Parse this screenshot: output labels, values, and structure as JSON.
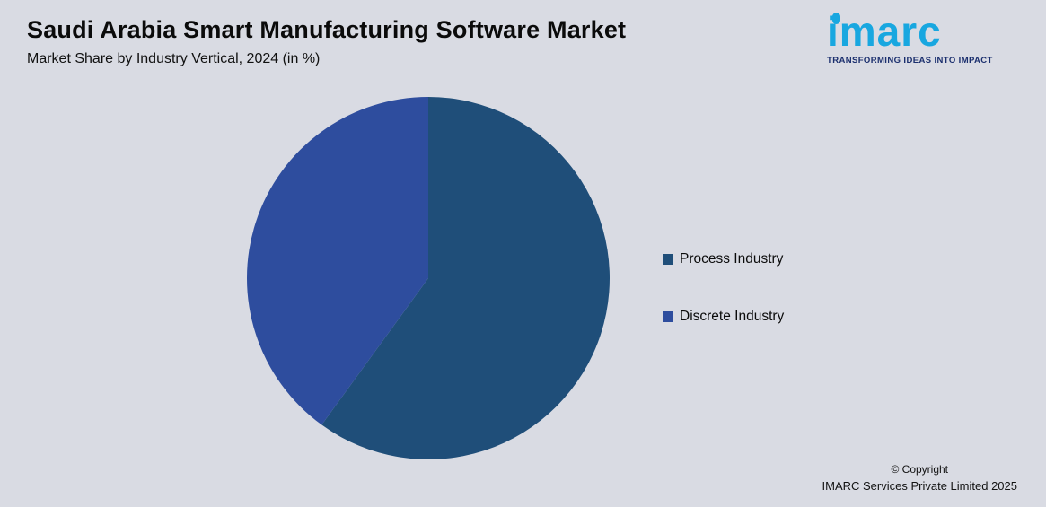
{
  "header": {
    "title": "Saudi Arabia Smart Manufacturing Software Market",
    "subtitle": "Market Share by Industry Vertical, 2024 (in %)"
  },
  "logo": {
    "text": "imarc",
    "tagline": "TRANSFORMING IDEAS INTO IMPACT",
    "brand_color": "#18a7e0",
    "tagline_color": "#1b2f6e"
  },
  "chart_data": {
    "type": "pie",
    "title": "Saudi Arabia Smart Manufacturing Software Market",
    "subtitle": "Market Share by Industry Vertical, 2024 (in %)",
    "unit": "%",
    "start_angle_deg": -90,
    "direction": "clockwise",
    "legend_position": "right",
    "series": [
      {
        "name": "Process Industry",
        "value": 60,
        "color": "#1f4e79"
      },
      {
        "name": "Discrete Industry",
        "value": 40,
        "color": "#2e4d9e"
      }
    ]
  },
  "footer": {
    "copyright_line1": "© Copyright",
    "copyright_line2": "IMARC Services Private Limited 2025"
  }
}
